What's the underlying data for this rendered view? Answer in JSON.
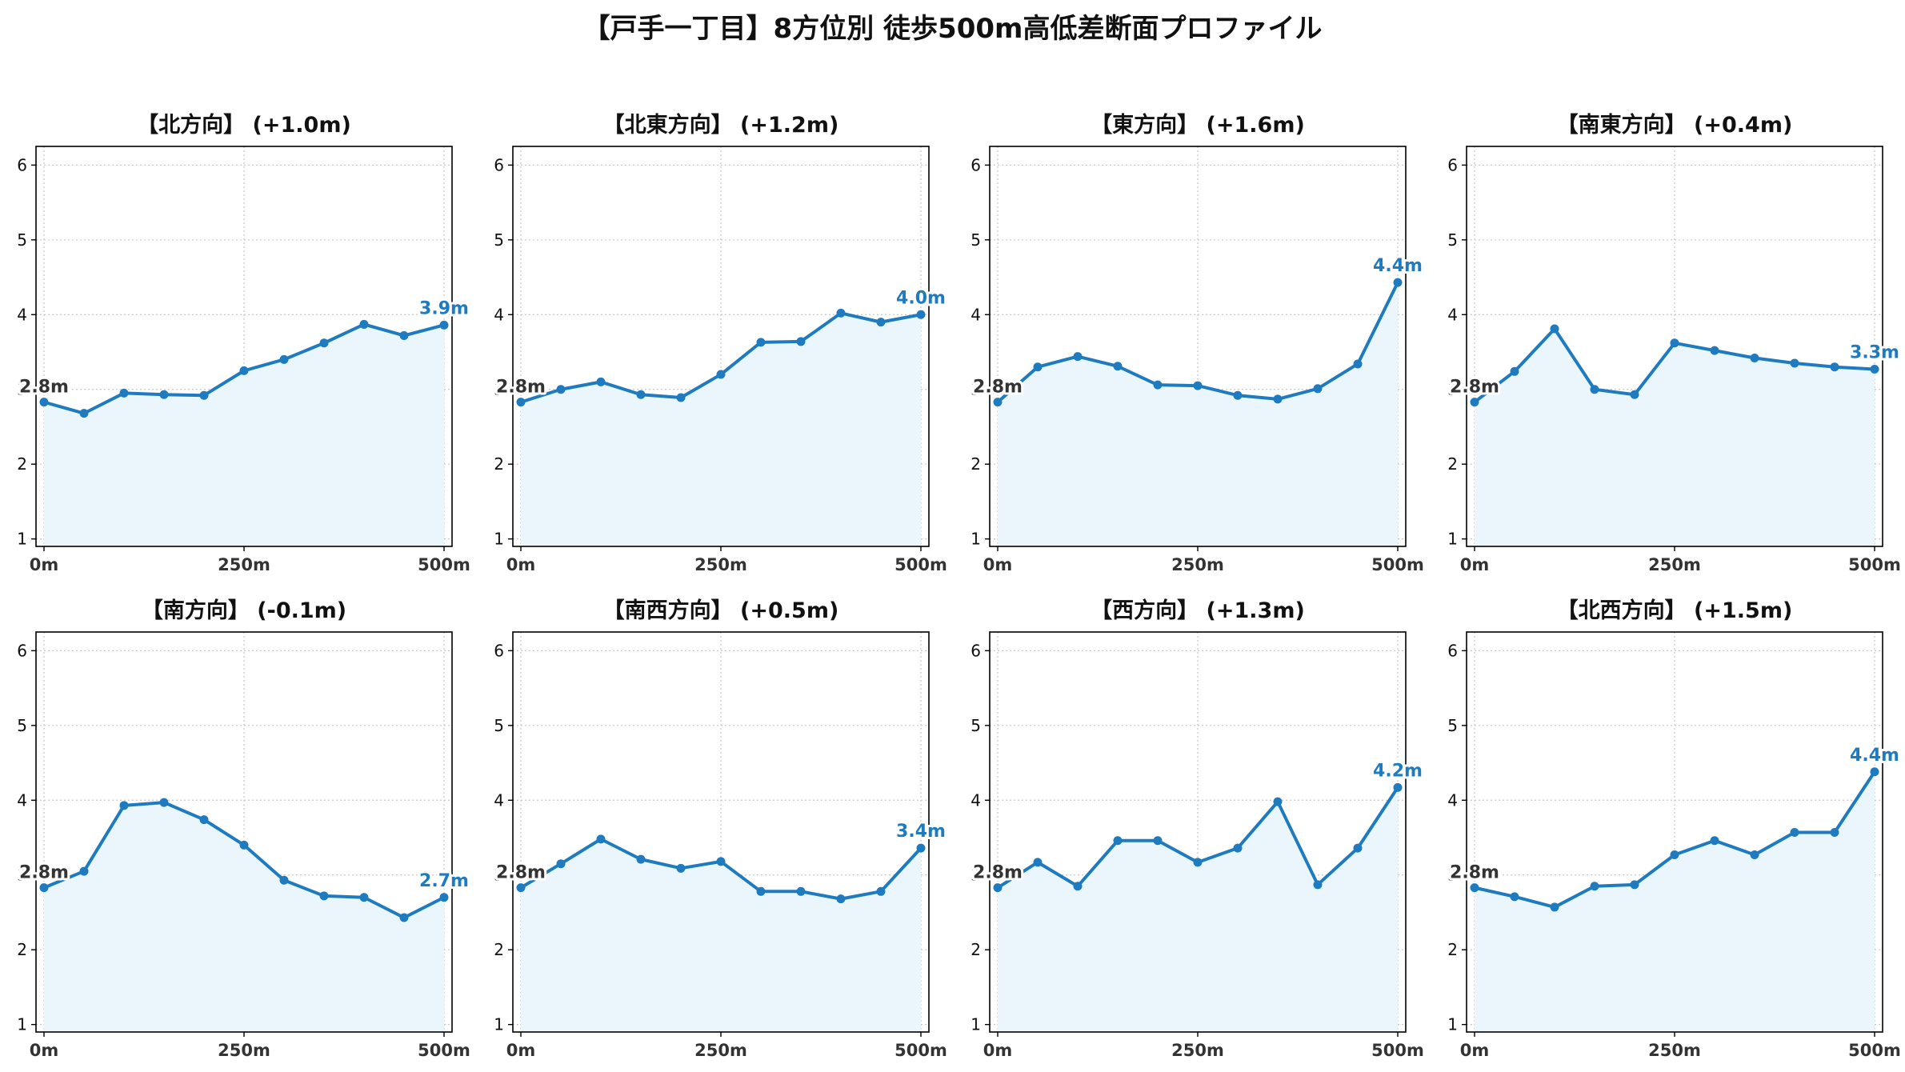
{
  "title": "【戸手一丁目】8方位別 徒歩500m高低差断面プロファイル",
  "colors": {
    "line": "#1f7bbf",
    "fill": "#eaf6fc",
    "end_label": "#1f7bbf",
    "start_label": "#333333",
    "grid": "#c8c8c8",
    "axis": "#000000"
  },
  "chart_data": [
    {
      "type": "area",
      "title": "【北方向】 (+1.0m)",
      "x": [
        0,
        50,
        100,
        150,
        200,
        250,
        300,
        350,
        400,
        450,
        500
      ],
      "y": [
        2.83,
        2.68,
        2.95,
        2.93,
        2.92,
        3.25,
        3.4,
        3.62,
        3.87,
        3.72,
        3.86
      ],
      "xticks": [
        "0m",
        "250m",
        "500m"
      ],
      "xtick_values": [
        0,
        250,
        500
      ],
      "yticks": [
        1,
        2,
        3,
        4,
        5,
        6
      ],
      "xlim": [
        -10,
        510
      ],
      "ylim": [
        0.9,
        6.25
      ],
      "grid": true,
      "start_label": "2.8m",
      "end_label": "3.9m"
    },
    {
      "type": "area",
      "title": "【北東方向】 (+1.2m)",
      "x": [
        0,
        50,
        100,
        150,
        200,
        250,
        300,
        350,
        400,
        450,
        500
      ],
      "y": [
        2.83,
        3.0,
        3.1,
        2.93,
        2.89,
        3.2,
        3.63,
        3.64,
        4.02,
        3.9,
        4.0
      ],
      "xticks": [
        "0m",
        "250m",
        "500m"
      ],
      "xtick_values": [
        0,
        250,
        500
      ],
      "yticks": [
        1,
        2,
        3,
        4,
        5,
        6
      ],
      "xlim": [
        -10,
        510
      ],
      "ylim": [
        0.9,
        6.25
      ],
      "grid": true,
      "start_label": "2.8m",
      "end_label": "4.0m"
    },
    {
      "type": "area",
      "title": "【東方向】 (+1.6m)",
      "x": [
        0,
        50,
        100,
        150,
        200,
        250,
        300,
        350,
        400,
        450,
        500
      ],
      "y": [
        2.83,
        3.3,
        3.44,
        3.31,
        3.06,
        3.05,
        2.92,
        2.87,
        3.01,
        3.34,
        4.43
      ],
      "xticks": [
        "0m",
        "250m",
        "500m"
      ],
      "xtick_values": [
        0,
        250,
        500
      ],
      "yticks": [
        1,
        2,
        3,
        4,
        5,
        6
      ],
      "xlim": [
        -10,
        510
      ],
      "ylim": [
        0.9,
        6.25
      ],
      "grid": true,
      "start_label": "2.8m",
      "end_label": "4.4m"
    },
    {
      "type": "area",
      "title": "【南東方向】 (+0.4m)",
      "x": [
        0,
        50,
        100,
        150,
        200,
        250,
        300,
        350,
        400,
        450,
        500
      ],
      "y": [
        2.83,
        3.24,
        3.81,
        3.0,
        2.93,
        3.62,
        3.52,
        3.42,
        3.35,
        3.3,
        3.27
      ],
      "xticks": [
        "0m",
        "250m",
        "500m"
      ],
      "xtick_values": [
        0,
        250,
        500
      ],
      "yticks": [
        1,
        2,
        3,
        4,
        5,
        6
      ],
      "xlim": [
        -10,
        510
      ],
      "ylim": [
        0.9,
        6.25
      ],
      "grid": true,
      "start_label": "2.8m",
      "end_label": "3.3m"
    },
    {
      "type": "area",
      "title": "【南方向】 (-0.1m)",
      "x": [
        0,
        50,
        100,
        150,
        200,
        250,
        300,
        350,
        400,
        450,
        500
      ],
      "y": [
        2.83,
        3.05,
        3.93,
        3.97,
        3.74,
        3.4,
        2.93,
        2.72,
        2.7,
        2.43,
        2.7
      ],
      "xticks": [
        "0m",
        "250m",
        "500m"
      ],
      "xtick_values": [
        0,
        250,
        500
      ],
      "yticks": [
        1,
        2,
        3,
        4,
        5,
        6
      ],
      "xlim": [
        -10,
        510
      ],
      "ylim": [
        0.9,
        6.25
      ],
      "grid": true,
      "start_label": "2.8m",
      "end_label": "2.7m"
    },
    {
      "type": "area",
      "title": "【南西方向】 (+0.5m)",
      "x": [
        0,
        50,
        100,
        150,
        200,
        250,
        300,
        350,
        400,
        450,
        500
      ],
      "y": [
        2.83,
        3.15,
        3.48,
        3.21,
        3.09,
        3.18,
        2.78,
        2.78,
        2.68,
        2.78,
        3.36
      ],
      "xticks": [
        "0m",
        "250m",
        "500m"
      ],
      "xtick_values": [
        0,
        250,
        500
      ],
      "yticks": [
        1,
        2,
        3,
        4,
        5,
        6
      ],
      "xlim": [
        -10,
        510
      ],
      "ylim": [
        0.9,
        6.25
      ],
      "grid": true,
      "start_label": "2.8m",
      "end_label": "3.4m"
    },
    {
      "type": "area",
      "title": "【西方向】 (+1.3m)",
      "x": [
        0,
        50,
        100,
        150,
        200,
        250,
        300,
        350,
        400,
        450,
        500
      ],
      "y": [
        2.83,
        3.17,
        2.85,
        3.46,
        3.46,
        3.17,
        3.36,
        3.98,
        2.87,
        3.36,
        4.17
      ],
      "xticks": [
        "0m",
        "250m",
        "500m"
      ],
      "xtick_values": [
        0,
        250,
        500
      ],
      "yticks": [
        1,
        2,
        3,
        4,
        5,
        6
      ],
      "xlim": [
        -10,
        510
      ],
      "ylim": [
        0.9,
        6.25
      ],
      "grid": true,
      "start_label": "2.8m",
      "end_label": "4.2m"
    },
    {
      "type": "area",
      "title": "【北西方向】 (+1.5m)",
      "x": [
        0,
        50,
        100,
        150,
        200,
        250,
        300,
        350,
        400,
        450,
        500
      ],
      "y": [
        2.83,
        2.71,
        2.57,
        2.85,
        2.87,
        3.27,
        3.46,
        3.27,
        3.57,
        3.57,
        4.38
      ],
      "xticks": [
        "0m",
        "250m",
        "500m"
      ],
      "xtick_values": [
        0,
        250,
        500
      ],
      "yticks": [
        1,
        2,
        3,
        4,
        5,
        6
      ],
      "xlim": [
        -10,
        510
      ],
      "ylim": [
        0.9,
        6.25
      ],
      "grid": true,
      "start_label": "2.8m",
      "end_label": "4.4m"
    }
  ]
}
